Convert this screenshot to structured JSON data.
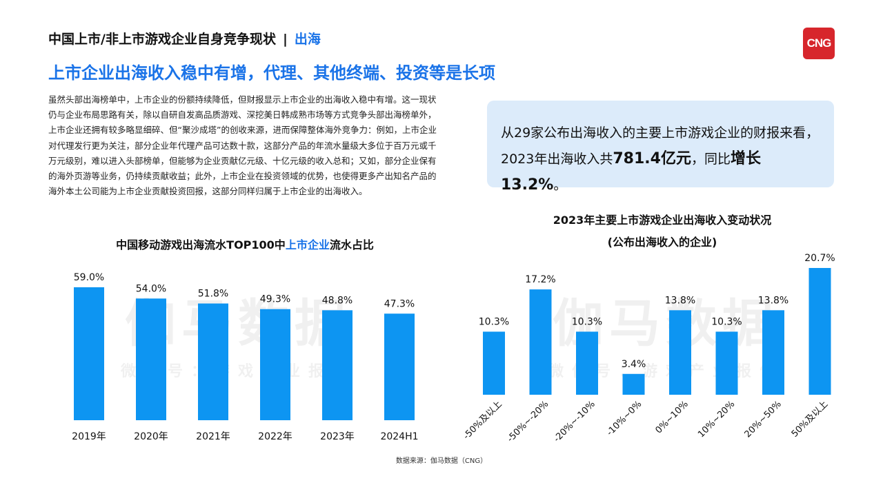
{
  "header": {
    "title": "中国上市/非上市游戏企业自身竞争现状",
    "separator": "|",
    "section": "出海",
    "logo_text": "CNG"
  },
  "main_title": "上市企业出海收入稳中有增，代理、其他终端、投资等是长项",
  "body_text": "虽然头部出海榜单中，上市企业的份额持续降低，但财报显示上市企业的出海收入稳中有增。这一现状仍与企业布局思路有关，除以自研自发高品质游戏、深挖美日韩成熟市场等方式竞争头部出海榜单外，上市企业还拥有较多略显细碎、但“聚沙成塔”的创收来源，进而保障整体海外竞争力：例如，上市企业对代理发行更为关注，部分企业年代理产品可达数十款，这部分产品的年流水量级大多位于百万元或千万元级别，难以进入头部榜单，但能够为企业贡献亿元级、十亿元级的收入总和；又如，部分企业保有的海外页游等业务，仍持续贡献收益；此外，上市企业在投资领域的优势，也使得更多产出知名产品的海外本土公司能为上市企业贡献投资回报，这部分同样归属于上市企业的出海收入。",
  "highlight": {
    "line1": "从29家公布出海收入的主要上市游戏企业的财报来看，",
    "line2_prefix": "2023年出海收入共",
    "amount": "781.4亿元",
    "line2_mid": "，同比",
    "growth": "增长13.2%",
    "line2_suffix": "。"
  },
  "watermark": {
    "main": "伽马数据",
    "sub": "微信号：游戏产业报告"
  },
  "left_chart_title": {
    "prefix": "中国移动游戏出海流水TOP100中",
    "accent": "上市企业",
    "suffix": "流水占比"
  },
  "right_chart_title": {
    "line1": "2023年主要上市游戏企业出海收入变动状况",
    "line2": "(公布出海收入的企业)"
  },
  "source": "数据来源：伽马数据（CNG）",
  "colors": {
    "bar": "#0d95f2",
    "accent": "#1a73e8",
    "box": "#dcebfa",
    "logo": "#d7262c"
  },
  "chart_data": [
    {
      "type": "bar",
      "title": "中国移动游戏出海流水TOP100中上市企业流水占比",
      "categories": [
        "2019年",
        "2020年",
        "2021年",
        "2022年",
        "2023年",
        "2024H1"
      ],
      "values": [
        59.0,
        54.0,
        51.8,
        49.3,
        48.8,
        47.3
      ],
      "labels": [
        "59.0%",
        "54.0%",
        "51.8%",
        "49.3%",
        "48.8%",
        "47.3%"
      ],
      "unit": "%",
      "ylim": [
        0,
        59.0
      ],
      "grid": false
    },
    {
      "type": "bar",
      "title": "2023年主要上市游戏企业出海收入变动状况",
      "subtitle": "(公布出海收入的企业)",
      "categories": [
        "-50%及以上",
        "-50%~-20%",
        "-20%~-10%",
        "-10%~0%",
        "0%~10%",
        "10%~20%",
        "20%~50%",
        "50%及以上"
      ],
      "values": [
        10.3,
        17.2,
        10.3,
        3.4,
        13.8,
        10.3,
        13.8,
        20.7
      ],
      "labels": [
        "10.3%",
        "17.2%",
        "10.3%",
        "3.4%",
        "13.8%",
        "10.3%",
        "13.8%",
        "20.7%"
      ],
      "unit": "%",
      "ylim": [
        0,
        20.7
      ],
      "grid": false
    }
  ]
}
